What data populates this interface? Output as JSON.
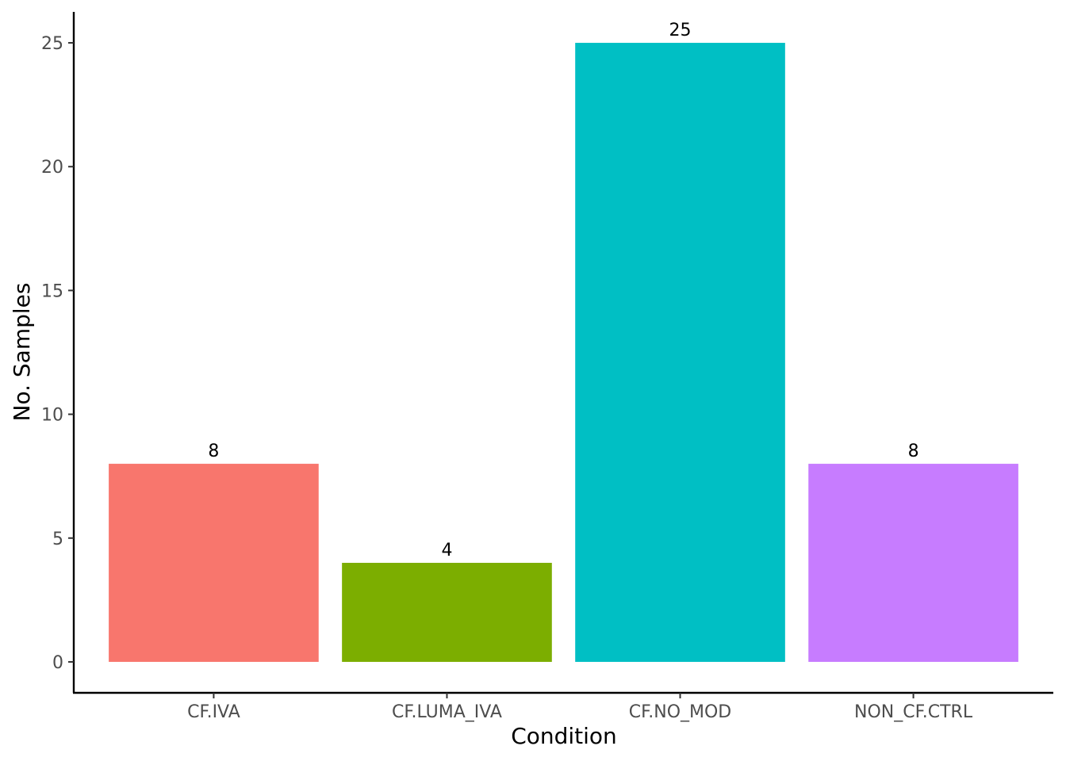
{
  "chart_data": {
    "type": "bar",
    "title": "",
    "xlabel": "Condition",
    "ylabel": "No. Samples",
    "categories": [
      "CF.IVA",
      "CF.LUMA_IVA",
      "CF.NO_MOD",
      "NON_CF.CTRL"
    ],
    "values": [
      8,
      4,
      25,
      8
    ],
    "data_labels": [
      "8",
      "4",
      "25",
      "8"
    ],
    "colors": [
      "#F8766D",
      "#7CAE00",
      "#00BFC4",
      "#C77CFF"
    ],
    "y_ticks": [
      0,
      5,
      10,
      15,
      20,
      25
    ],
    "y_tick_labels": [
      "0",
      "5",
      "10",
      "15",
      "20",
      "25"
    ],
    "ylim": [
      -1.25,
      26.25
    ],
    "grid": false,
    "legend": "none"
  }
}
